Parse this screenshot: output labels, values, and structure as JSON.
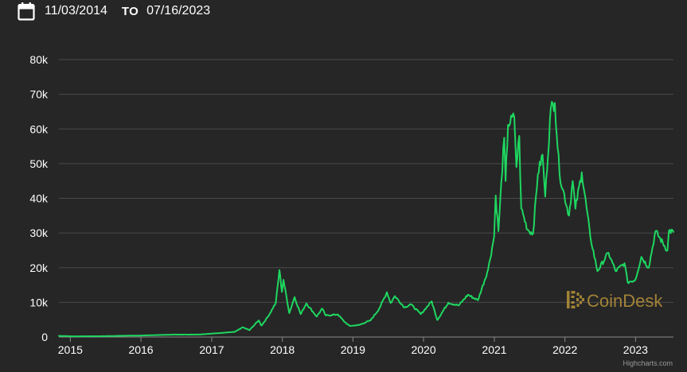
{
  "date_range": {
    "start": "11/03/2014",
    "to_label": "TO",
    "end": "07/16/2023",
    "icon": "calendar-icon"
  },
  "watermark": {
    "text": "CoinDesk",
    "icon": "coindesk-logo-icon"
  },
  "credits": "Highcharts.com",
  "colors": {
    "line": "#1ed760",
    "background": "#262626",
    "grid": "#4a4a4a",
    "watermark": "#b8933a"
  },
  "chart_data": {
    "type": "line",
    "title": "",
    "xlabel": "",
    "ylabel": "",
    "grid": true,
    "ylim": [
      0,
      80000
    ],
    "xlim": [
      "2014-11-03",
      "2023-07-16"
    ],
    "yticks": [
      0,
      10000,
      20000,
      30000,
      40000,
      50000,
      60000,
      70000,
      80000
    ],
    "ytick_labels": [
      "0",
      "10k",
      "20k",
      "30k",
      "40k",
      "50k",
      "60k",
      "70k",
      "80k"
    ],
    "xticks": [
      "2015-01-01",
      "2016-01-01",
      "2017-01-01",
      "2018-01-01",
      "2019-01-01",
      "2020-01-01",
      "2021-01-01",
      "2022-01-01",
      "2023-01-01"
    ],
    "xtick_labels": [
      "2015",
      "2016",
      "2017",
      "2018",
      "2019",
      "2020",
      "2021",
      "2022",
      "2023"
    ],
    "series": [
      {
        "points": [
          [
            "2014-11-03",
            330
          ],
          [
            "2015-01-15",
            210
          ],
          [
            "2015-06-01",
            230
          ],
          [
            "2015-11-05",
            400
          ],
          [
            "2016-01-01",
            430
          ],
          [
            "2016-06-15",
            700
          ],
          [
            "2016-11-01",
            720
          ],
          [
            "2017-01-01",
            1000
          ],
          [
            "2017-03-01",
            1200
          ],
          [
            "2017-05-01",
            1500
          ],
          [
            "2017-06-10",
            2800
          ],
          [
            "2017-07-15",
            2000
          ],
          [
            "2017-09-01",
            4800
          ],
          [
            "2017-09-15",
            3300
          ],
          [
            "2017-10-20",
            6000
          ],
          [
            "2017-11-28",
            9800
          ],
          [
            "2017-12-17",
            19300
          ],
          [
            "2017-12-30",
            13000
          ],
          [
            "2018-01-07",
            16500
          ],
          [
            "2018-02-06",
            6900
          ],
          [
            "2018-03-05",
            11500
          ],
          [
            "2018-04-06",
            6600
          ],
          [
            "2018-05-05",
            9700
          ],
          [
            "2018-06-28",
            5900
          ],
          [
            "2018-07-25",
            8200
          ],
          [
            "2018-08-14",
            6200
          ],
          [
            "2018-10-15",
            6500
          ],
          [
            "2018-11-20",
            4300
          ],
          [
            "2018-12-15",
            3200
          ],
          [
            "2019-02-01",
            3450
          ],
          [
            "2019-04-02",
            4800
          ],
          [
            "2019-05-15",
            8000
          ],
          [
            "2019-06-26",
            12900
          ],
          [
            "2019-07-15",
            9800
          ],
          [
            "2019-08-06",
            11800
          ],
          [
            "2019-09-25",
            8500
          ],
          [
            "2019-10-26",
            9500
          ],
          [
            "2019-12-18",
            6600
          ],
          [
            "2020-02-12",
            10300
          ],
          [
            "2020-03-12",
            4900
          ],
          [
            "2020-05-08",
            9900
          ],
          [
            "2020-07-01",
            9100
          ],
          [
            "2020-08-17",
            12200
          ],
          [
            "2020-10-08",
            10600
          ],
          [
            "2020-11-30",
            19500
          ],
          [
            "2020-12-31",
            29000
          ],
          [
            "2021-01-08",
            40800
          ],
          [
            "2021-01-22",
            30500
          ],
          [
            "2021-02-21",
            57500
          ],
          [
            "2021-02-28",
            45000
          ],
          [
            "2021-03-13",
            61200
          ],
          [
            "2021-04-14",
            63500
          ],
          [
            "2021-04-25",
            49000
          ],
          [
            "2021-05-10",
            58000
          ],
          [
            "2021-05-20",
            37000
          ],
          [
            "2021-06-22",
            31000
          ],
          [
            "2021-07-20",
            29800
          ],
          [
            "2021-08-14",
            47000
          ],
          [
            "2021-09-07",
            52600
          ],
          [
            "2021-09-21",
            40500
          ],
          [
            "2021-10-20",
            66000
          ],
          [
            "2021-11-10",
            67500
          ],
          [
            "2021-12-04",
            47000
          ],
          [
            "2022-01-22",
            35000
          ],
          [
            "2022-02-10",
            45000
          ],
          [
            "2022-02-24",
            37000
          ],
          [
            "2022-03-29",
            47500
          ],
          [
            "2022-05-12",
            29000
          ],
          [
            "2022-06-18",
            19000
          ],
          [
            "2022-08-14",
            24300
          ],
          [
            "2022-09-20",
            19000
          ],
          [
            "2022-11-05",
            21300
          ],
          [
            "2022-11-21",
            15800
          ],
          [
            "2022-12-31",
            16500
          ],
          [
            "2023-01-31",
            23100
          ],
          [
            "2023-03-10",
            20000
          ],
          [
            "2023-04-14",
            30500
          ],
          [
            "2023-06-15",
            25000
          ],
          [
            "2023-06-23",
            30700
          ],
          [
            "2023-07-16",
            30300
          ]
        ]
      }
    ]
  }
}
